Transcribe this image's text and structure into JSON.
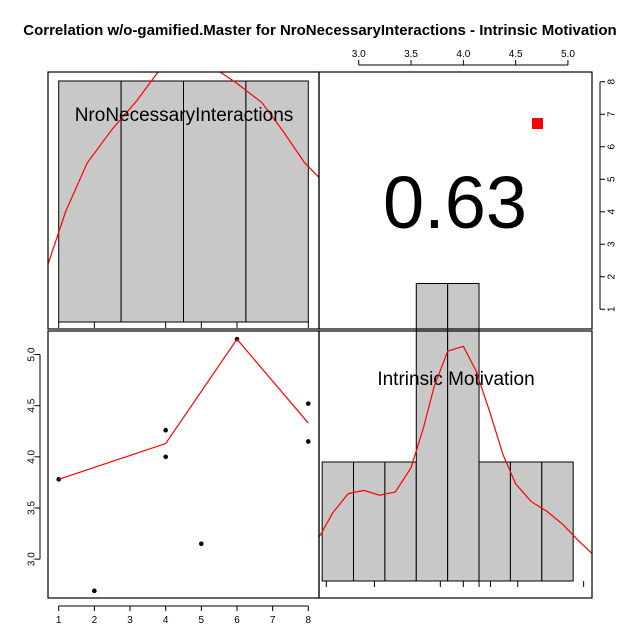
{
  "chart_data": {
    "type": "scatter",
    "subtype": "correlation-pairs-matrix",
    "title": "Correlation w/o-gamified.Master for NroNecessaryInteractions - Intrinsic Motivation",
    "variables": [
      "NroNecessaryInteractions",
      "Intrinsic Motivation"
    ],
    "correlation": {
      "label": "0.63",
      "value": 0.63,
      "significance_marker_color": "#ff0000"
    },
    "x_axis": {
      "variable": "NroNecessaryInteractions",
      "range": [
        0.7,
        8.3
      ],
      "ticks": [
        1,
        2,
        3,
        4,
        5,
        6,
        7,
        8
      ]
    },
    "y_axis": {
      "variable": "Intrinsic Motivation",
      "range": [
        2.62,
        5.23
      ],
      "ticks": [
        3.0,
        3.5,
        4.0,
        4.5,
        5.0
      ],
      "tick_labels": [
        "3.0",
        "3.5",
        "4.0",
        "4.5",
        "5.0"
      ]
    },
    "top_axis": {
      "ticks": [
        3.0,
        3.5,
        4.0,
        4.5,
        5.0
      ],
      "tick_labels": [
        "3.0",
        "3.5",
        "4.0",
        "4.5",
        "5.0"
      ]
    },
    "right_axis": {
      "ticks": [
        1,
        2,
        3,
        4,
        5,
        6,
        7,
        8
      ],
      "tick_labels": [
        "1",
        "2",
        "3",
        "4",
        "5",
        "6",
        "7",
        "8"
      ]
    },
    "scatter_points": [
      {
        "x": 1,
        "y": 3.78
      },
      {
        "x": 2,
        "y": 2.69
      },
      {
        "x": 4,
        "y": 4.0
      },
      {
        "x": 4,
        "y": 4.26
      },
      {
        "x": 5,
        "y": 3.15
      },
      {
        "x": 6,
        "y": 5.15
      },
      {
        "x": 8,
        "y": 4.15
      },
      {
        "x": 8,
        "y": 4.52
      }
    ],
    "smoother_line": [
      {
        "x": 1,
        "y": 3.78
      },
      {
        "x": 4,
        "y": 4.13
      },
      {
        "x": 6,
        "y": 5.15
      },
      {
        "x": 8,
        "y": 4.33
      }
    ],
    "histogram_NroNecessaryInteractions": {
      "range": [
        0.7,
        8.3
      ],
      "breaks": [
        1,
        2.75,
        4.5,
        6.25,
        8
      ],
      "relative_heights": [
        1.0,
        1.0,
        1.0,
        1.0
      ],
      "rug": [
        1,
        2,
        4,
        5,
        6,
        8
      ],
      "density": [
        {
          "x": 0.7,
          "d": 0.24
        },
        {
          "x": 1.2,
          "d": 0.46
        },
        {
          "x": 1.8,
          "d": 0.66
        },
        {
          "x": 2.5,
          "d": 0.8
        },
        {
          "x": 3.2,
          "d": 0.92
        },
        {
          "x": 3.9,
          "d": 1.06
        },
        {
          "x": 4.6,
          "d": 1.13
        },
        {
          "x": 5.3,
          "d": 1.06
        },
        {
          "x": 6.0,
          "d": 0.99
        },
        {
          "x": 6.7,
          "d": 0.91
        },
        {
          "x": 7.3,
          "d": 0.79
        },
        {
          "x": 7.9,
          "d": 0.66
        },
        {
          "x": 8.3,
          "d": 0.6
        }
      ]
    },
    "histogram_Intrinsic_Motivation": {
      "range": [
        2.62,
        5.23
      ],
      "breaks": [
        2.65,
        2.95,
        3.25,
        3.55,
        3.85,
        4.15,
        4.45,
        4.75,
        5.05
      ],
      "relative_heights": [
        0.5,
        0.5,
        0.5,
        1.25,
        1.25,
        0.5,
        0.5,
        0.5
      ],
      "rug": [
        2.69,
        3.15,
        3.78,
        4.0,
        4.15,
        4.26,
        4.52,
        5.15
      ],
      "density": [
        {
          "x": 2.62,
          "d": 0.27
        },
        {
          "x": 2.75,
          "d": 0.42
        },
        {
          "x": 2.9,
          "d": 0.54
        },
        {
          "x": 3.05,
          "d": 0.56
        },
        {
          "x": 3.2,
          "d": 0.53
        },
        {
          "x": 3.35,
          "d": 0.55
        },
        {
          "x": 3.5,
          "d": 0.7
        },
        {
          "x": 3.62,
          "d": 0.95
        },
        {
          "x": 3.72,
          "d": 1.2
        },
        {
          "x": 3.85,
          "d": 1.42
        },
        {
          "x": 4.0,
          "d": 1.45
        },
        {
          "x": 4.12,
          "d": 1.3
        },
        {
          "x": 4.25,
          "d": 1.05
        },
        {
          "x": 4.38,
          "d": 0.78
        },
        {
          "x": 4.5,
          "d": 0.6
        },
        {
          "x": 4.65,
          "d": 0.49
        },
        {
          "x": 4.8,
          "d": 0.43
        },
        {
          "x": 4.95,
          "d": 0.35
        },
        {
          "x": 5.1,
          "d": 0.25
        },
        {
          "x": 5.23,
          "d": 0.17
        }
      ]
    },
    "colors": {
      "bars": "#c8c8c8",
      "lines": "#ff0000",
      "points": "#000000"
    }
  }
}
